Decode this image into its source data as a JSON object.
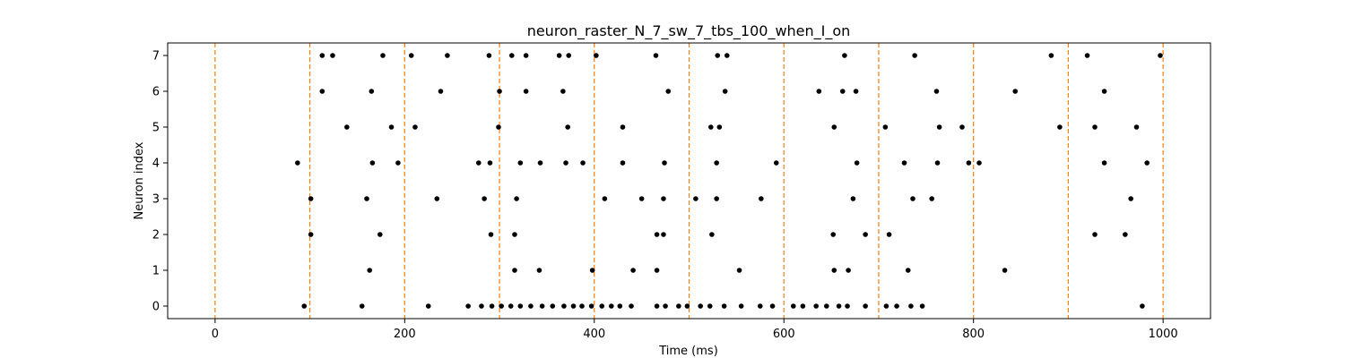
{
  "chart_data": {
    "type": "scatter",
    "title": "neuron_raster_N_7_sw_7_tbs_100_when_I_on",
    "xlabel": "Time (ms)",
    "ylabel": "Neuron index",
    "xlim": [
      -50,
      1050
    ],
    "ylim": [
      -0.35,
      7.35
    ],
    "xticks": [
      0,
      200,
      400,
      600,
      800,
      1000
    ],
    "yticks": [
      0,
      1,
      2,
      3,
      4,
      5,
      6,
      7
    ],
    "grid": false,
    "legend": "none",
    "marker_color": "#000000",
    "vline_color": "#ff7f0e",
    "vlines": [
      0,
      100,
      200,
      300,
      400,
      500,
      600,
      700,
      800,
      900,
      1000
    ],
    "spikes": [
      {
        "neuron": 0,
        "times": [
          94,
          155,
          225,
          267,
          281,
          292,
          302,
          312,
          322,
          333,
          345,
          356,
          368,
          378,
          387,
          397,
          408,
          418,
          427,
          439,
          466,
          475,
          489,
          498,
          512,
          522,
          537,
          555,
          575,
          588,
          610,
          620,
          634,
          645,
          658,
          667,
          686,
          708,
          719,
          734,
          746,
          978
        ]
      },
      {
        "neuron": 1,
        "times": [
          163,
          316,
          342,
          398,
          441,
          466,
          553,
          653,
          668,
          731,
          833
        ]
      },
      {
        "neuron": 2,
        "times": [
          101,
          174,
          291,
          316,
          466,
          473,
          524,
          652,
          686,
          711,
          928,
          960
        ]
      },
      {
        "neuron": 3,
        "times": [
          101,
          160,
          234,
          284,
          318,
          411,
          450,
          473,
          507,
          529,
          576,
          673,
          736,
          756,
          966
        ]
      },
      {
        "neuron": 4,
        "times": [
          87,
          166,
          193,
          278,
          290,
          322,
          343,
          370,
          388,
          430,
          474,
          529,
          592,
          677,
          727,
          762,
          795,
          806,
          938,
          983
        ]
      },
      {
        "neuron": 5,
        "times": [
          139,
          186,
          211,
          299,
          372,
          430,
          523,
          532,
          653,
          707,
          764,
          788,
          891,
          928,
          972
        ]
      },
      {
        "neuron": 6,
        "times": [
          113,
          165,
          238,
          300,
          328,
          367,
          478,
          538,
          637,
          662,
          676,
          761,
          844,
          938
        ]
      },
      {
        "neuron": 7,
        "times": [
          113,
          124,
          177,
          207,
          245,
          289,
          313,
          328,
          363,
          373,
          402,
          465,
          530,
          540,
          664,
          738,
          882,
          920,
          997
        ]
      }
    ]
  }
}
